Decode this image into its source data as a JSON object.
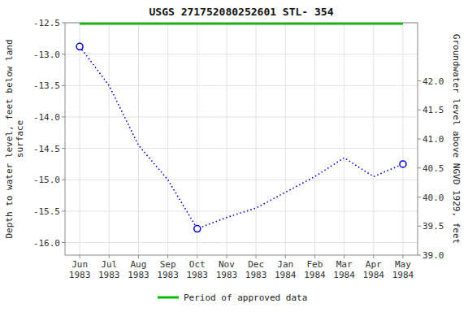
{
  "chart_data": {
    "type": "line",
    "title": "USGS 271752080252601 STL- 354",
    "categories": [
      "Jun\n1983",
      "Jul\n1983",
      "Aug\n1983",
      "Sep\n1983",
      "Oct\n1983",
      "Nov\n1983",
      "Dec\n1983",
      "Jan\n1984",
      "Feb\n1984",
      "Mar\n1984",
      "Apr\n1984",
      "May\n1984"
    ],
    "series": [
      {
        "type": "line",
        "color": "#0000CC",
        "line_style": "dotted",
        "values": [
          -12.88,
          -13.5,
          -14.45,
          -15.0,
          -15.78,
          -15.6,
          -15.45,
          -15.2,
          -14.95,
          -14.65,
          -14.95,
          -14.75
        ]
      },
      {
        "type": "scatter",
        "color": "#0000CC",
        "marker": "circle",
        "values": [
          -12.88,
          null,
          null,
          null,
          -15.78,
          null,
          null,
          null,
          null,
          null,
          null,
          -14.75
        ]
      },
      {
        "type": "line",
        "name": "Period of approved data",
        "color": "#00BB00",
        "values": [
          -12.5,
          -12.5,
          -12.5,
          -12.5,
          -12.5,
          -12.5,
          -12.5,
          -12.5,
          -12.5,
          -12.5,
          -12.5,
          -12.5
        ]
      }
    ],
    "y_label": "Depth to water level, feet below land\nsurface",
    "y2_label": "Groundwater level above NGVD 1929, feet",
    "ylim": [
      -16.2,
      -12.5
    ],
    "yticks": [
      {
        "value": -16.0,
        "label": "-16.0"
      },
      {
        "value": -15.5,
        "label": "-15.5"
      },
      {
        "value": -15.0,
        "label": "-15.0"
      },
      {
        "value": -14.5,
        "label": "-14.5"
      },
      {
        "value": -14.0,
        "label": "-14.0"
      },
      {
        "value": -13.5,
        "label": "-13.5"
      },
      {
        "value": -13.0,
        "label": "-13.0"
      },
      {
        "value": -12.5,
        "label": "-12.5"
      }
    ],
    "y2lim": [
      39.0,
      43.0
    ],
    "y2ticks": [
      {
        "value": 39.0,
        "label": "39.0"
      },
      {
        "value": 39.5,
        "label": "39.5"
      },
      {
        "value": 40.0,
        "label": "40.0"
      },
      {
        "value": 40.5,
        "label": "40.5"
      },
      {
        "value": 41.0,
        "label": "41.0"
      },
      {
        "value": 41.5,
        "label": "41.5"
      },
      {
        "value": 42.0,
        "label": "42.0"
      }
    ],
    "grid": true,
    "legend": "bottom"
  }
}
